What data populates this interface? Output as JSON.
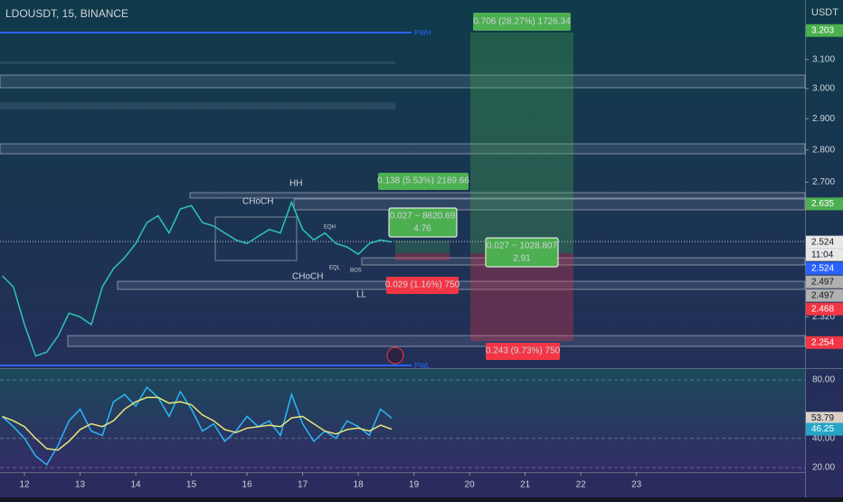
{
  "header": {
    "symbol": "LDOUSDT, 15, BINANCE",
    "currency": "USDT"
  },
  "chart_data": {
    "type": "line",
    "log_scale": true,
    "color": "#2ec4b6",
    "x": [
      11.6,
      11.8,
      12.0,
      12.2,
      12.4,
      12.6,
      12.8,
      13.0,
      13.2,
      13.4,
      13.6,
      13.8,
      14.0,
      14.2,
      14.4,
      14.6,
      14.8,
      15.0,
      15.2,
      15.4,
      15.6,
      15.8,
      16.0,
      16.2,
      16.4,
      16.6,
      16.8,
      17.0,
      17.2,
      17.4,
      17.6,
      17.8,
      18.0,
      18.2,
      18.4,
      18.6
    ],
    "values": [
      2.43,
      2.4,
      2.3,
      2.22,
      2.23,
      2.27,
      2.33,
      2.32,
      2.3,
      2.4,
      2.45,
      2.48,
      2.52,
      2.58,
      2.6,
      2.55,
      2.62,
      2.63,
      2.58,
      2.57,
      2.55,
      2.53,
      2.52,
      2.54,
      2.56,
      2.55,
      2.64,
      2.56,
      2.53,
      2.55,
      2.52,
      2.51,
      2.49,
      2.52,
      2.53,
      2.524
    ],
    "xlim": [
      11.56,
      26.03
    ],
    "xticks": [
      12,
      13,
      14,
      15,
      16,
      17,
      18,
      19,
      20,
      21,
      22,
      23
    ],
    "ylim": [
      2.19,
      3.315
    ],
    "yticks": [
      {
        "value": 3.1,
        "label": "3.100"
      },
      {
        "value": 3.0,
        "label": "3.000"
      },
      {
        "value": 2.9,
        "label": "2.900"
      },
      {
        "value": 2.8,
        "label": "2.800"
      },
      {
        "value": 2.7,
        "label": "2.700"
      },
      {
        "value": 2.32,
        "label": "2.320"
      }
    ],
    "price_labels": [
      {
        "value": 3.203,
        "label": "3.203",
        "color": "#4caf50"
      },
      {
        "value": 2.635,
        "label": "2.635",
        "color": "#4caf50"
      },
      {
        "value": 2.524,
        "label": "2.524",
        "color": "#e8e8e8"
      },
      {
        "value": 2.524,
        "label": "2.524",
        "color": "#2962ff"
      },
      {
        "value": 2.497,
        "label": "2.497",
        "color": "#b0b0b0"
      },
      {
        "value": 2.497,
        "label": "2.497",
        "color": "#b0b0b0"
      },
      {
        "value": 2.468,
        "label": "2.468",
        "color": "#f23645"
      },
      {
        "value": 2.254,
        "label": "2.254",
        "color": "#f23645"
      }
    ],
    "countdown": "11:04"
  },
  "rsi": {
    "values": [
      55,
      48,
      40,
      28,
      22,
      35,
      52,
      60,
      45,
      42,
      65,
      70,
      62,
      75,
      68,
      55,
      72,
      60,
      45,
      50,
      38,
      45,
      55,
      48,
      52,
      42,
      70,
      50,
      38,
      45,
      40,
      52,
      48,
      42,
      60,
      53.79
    ],
    "ma_values": [
      55,
      52,
      48,
      40,
      33,
      32,
      38,
      46,
      50,
      48,
      52,
      60,
      65,
      68,
      68,
      64,
      65,
      63,
      56,
      52,
      46,
      44,
      47,
      48,
      49,
      48,
      54,
      55,
      50,
      45,
      43,
      46,
      47,
      45,
      49,
      46.25
    ],
    "ylim": [
      16.9,
      87.4
    ],
    "yticks": [
      {
        "value": 80,
        "label": "80.00"
      },
      {
        "value": 40,
        "label": "40.00"
      },
      {
        "value": 20,
        "label": "20.00"
      }
    ],
    "current_labels": [
      "53.79",
      "46.25"
    ]
  },
  "annotations": {
    "hh": "HH",
    "choch1": "CHoCH",
    "choch2": "CHoCH",
    "ll": "LL",
    "eqh": "EQH",
    "eql": "EQL",
    "bos": "BOS",
    "pwh": "PWH",
    "pwl": "PWL",
    "pos1": "0.706 (28.27%) 1726.34",
    "pos2": "0.138 (5.53%) 2189.66",
    "pos3a": "0.027 ~ 8620.69",
    "pos3b": "4.76",
    "pos4a": "0.027 ~ 1028.807",
    "pos4b": "2.91",
    "pos5": "0.029 (1.16%) 750",
    "pos6": "0.243 (9.73%) 750"
  }
}
